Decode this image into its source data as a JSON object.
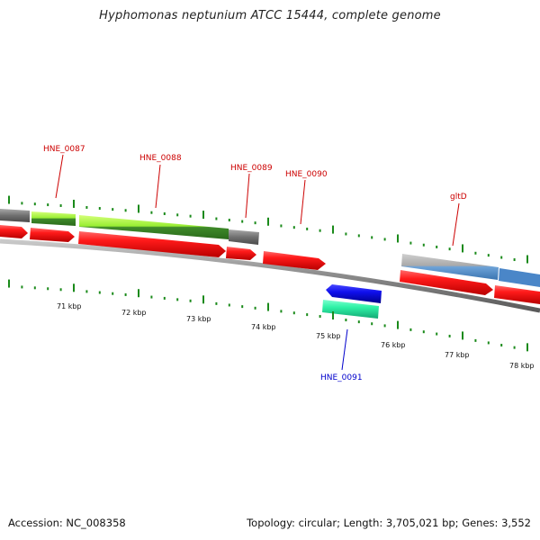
{
  "title": "Hyphomonas neptunium ATCC 15444, complete genome",
  "footer": {
    "accession": "Accession: NC_008358",
    "summary": "Topology: circular; Length: 3,705,021 bp; Genes: 3,552"
  },
  "colors": {
    "cds": "#ff0000",
    "reverse_cds": "#0000ff",
    "rna": "#33ffaa",
    "cog_grey": "#777777",
    "cog_green": "#99ee33",
    "cog_blue": "#4a86c8",
    "tick": "#1a8a1a",
    "forward_label": "#cc0000",
    "reverse_label": "#0000cc"
  },
  "scale_labels": [
    "71 kbp",
    "72 kbp",
    "73 kbp",
    "74 kbp",
    "75 kbp",
    "76 kbp",
    "77 kbp",
    "78 kbp"
  ],
  "gene_labels": [
    {
      "name": "HNE_0087",
      "strand": "forward"
    },
    {
      "name": "HNE_0088",
      "strand": "forward"
    },
    {
      "name": "HNE_0089",
      "strand": "forward"
    },
    {
      "name": "HNE_0090",
      "strand": "forward"
    },
    {
      "name": "gltD",
      "strand": "forward"
    },
    {
      "name": "HNE_0091",
      "strand": "reverse"
    }
  ]
}
